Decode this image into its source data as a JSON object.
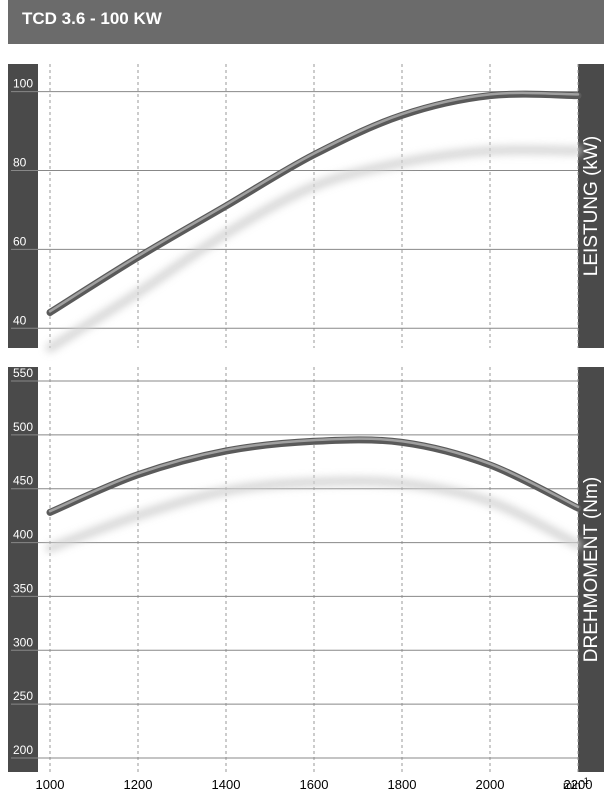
{
  "header": {
    "title": "TCD 3.6 - 100 KW"
  },
  "x_axis": {
    "ticks": [
      1000,
      1200,
      1400,
      1600,
      1800,
      2000,
      2200
    ],
    "unit_base": "min",
    "unit_exp": "-1"
  },
  "chart_data": [
    {
      "type": "line",
      "ylabel": "LEISTUNG (kW)",
      "xlim": [
        1000,
        2200
      ],
      "ylim": [
        35,
        107
      ],
      "yticks": [
        40,
        60,
        80,
        100
      ],
      "grid": true,
      "series": [
        {
          "style": "main",
          "x": [
            1000,
            1200,
            1400,
            1600,
            1800,
            2000,
            2200
          ],
          "y": [
            44,
            58,
            71,
            84,
            94,
            99,
            99
          ]
        },
        {
          "style": "shadow",
          "x": [
            1000,
            1200,
            1400,
            1600,
            1800,
            2000,
            2200
          ],
          "y": [
            35,
            49,
            64,
            76,
            82,
            85,
            85
          ]
        }
      ]
    },
    {
      "type": "line",
      "ylabel": "DREHMOMENT (Nm)",
      "xlim": [
        1000,
        2200
      ],
      "ylim": [
        187,
        563
      ],
      "yticks": [
        200,
        250,
        300,
        350,
        400,
        450,
        500,
        550
      ],
      "grid": true,
      "series": [
        {
          "style": "main",
          "x": [
            1000,
            1200,
            1400,
            1600,
            1800,
            2000,
            2200
          ],
          "y": [
            428,
            463,
            485,
            494,
            493,
            472,
            432
          ]
        },
        {
          "style": "shadow",
          "x": [
            1000,
            1200,
            1400,
            1600,
            1800,
            2000,
            2200
          ],
          "y": [
            395,
            425,
            448,
            456,
            455,
            438,
            398
          ]
        }
      ]
    }
  ]
}
